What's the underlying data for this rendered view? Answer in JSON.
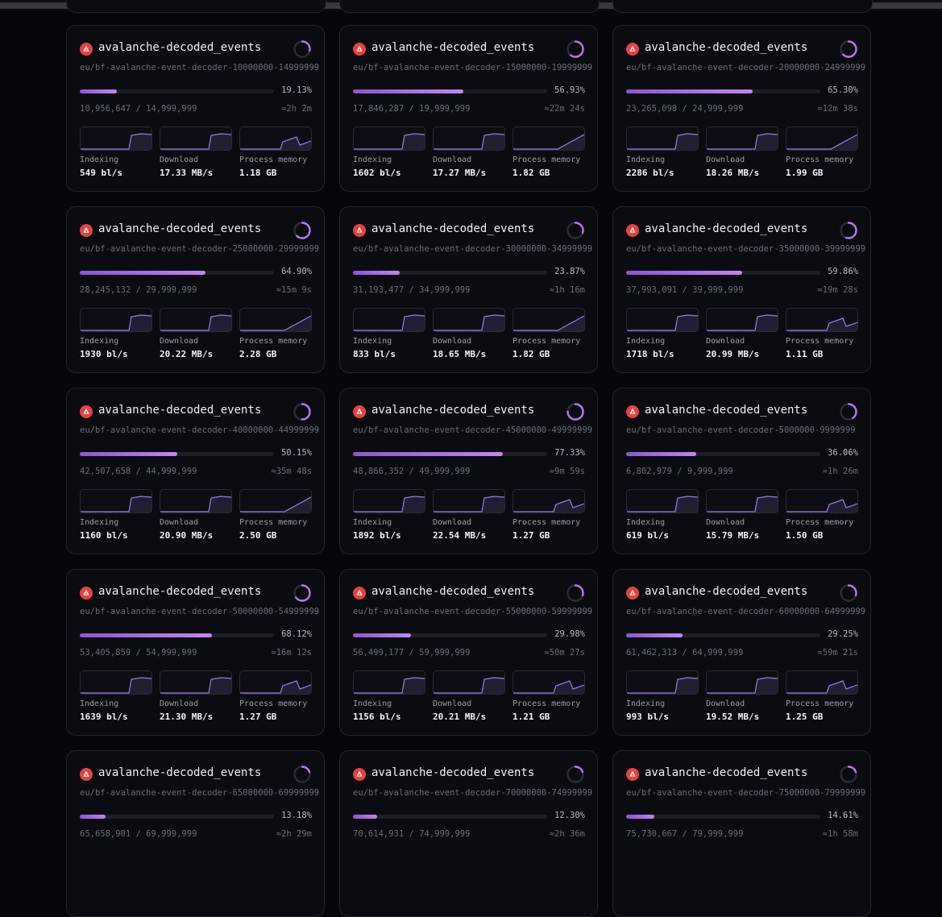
{
  "colors": {
    "background": "#06070d",
    "card": "#0b0c12",
    "accent": "#b57ae8",
    "logo": "#e84142"
  },
  "icons": {
    "logo": "avalanche-logo-icon",
    "status": "progress-ring-icon"
  },
  "metric_labels": {
    "indexing": "Indexing",
    "download": "Download",
    "memory": "Process memory"
  },
  "cards": [
    {
      "title": "avalanche-decoded_events",
      "subtitle": "eu/bf-avalanche-event-decoder-10000000-14999999",
      "percent": "19.13%",
      "progress": 0.1913,
      "counts": "10,956,647 / 14,999,999",
      "eta": "≈2h 2m",
      "indexing": "549 bl/s",
      "download": "17.33 MB/s",
      "memory": "1.18 GB",
      "spinner": 0.28,
      "spark": {
        "indexing": "step",
        "download": "step",
        "memory": "spike"
      }
    },
    {
      "title": "avalanche-decoded_events",
      "subtitle": "eu/bf-avalanche-event-decoder-15000000-19999999",
      "percent": "56.93%",
      "progress": 0.5693,
      "counts": "17,846,287 / 19,999,999",
      "eta": "≈22m 24s",
      "indexing": "1602 bl/s",
      "download": "17.27 MB/s",
      "memory": "1.82 GB",
      "spinner": 0.6,
      "spark": {
        "indexing": "step",
        "download": "step",
        "memory": "ramp"
      }
    },
    {
      "title": "avalanche-decoded_events",
      "subtitle": "eu/bf-avalanche-event-decoder-20000000-24999999",
      "percent": "65.30%",
      "progress": 0.653,
      "counts": "23,265,098 / 24,999,999",
      "eta": "≈12m 38s",
      "indexing": "2286 bl/s",
      "download": "18.26 MB/s",
      "memory": "1.99 GB",
      "spinner": 0.62,
      "spark": {
        "indexing": "step",
        "download": "step",
        "memory": "ramp"
      }
    },
    {
      "title": "avalanche-decoded_events",
      "subtitle": "eu/bf-avalanche-event-decoder-25000000-29999999",
      "percent": "64.90%",
      "progress": 0.649,
      "counts": "28,245,132 / 29,999,999",
      "eta": "≈15m 9s",
      "indexing": "1930 bl/s",
      "download": "20.22 MB/s",
      "memory": "2.28 GB",
      "spinner": 0.62,
      "spark": {
        "indexing": "step",
        "download": "step",
        "memory": "ramp"
      }
    },
    {
      "title": "avalanche-decoded_events",
      "subtitle": "eu/bf-avalanche-event-decoder-30000000-34999999",
      "percent": "23.87%",
      "progress": 0.2387,
      "counts": "31,193,477 / 34,999,999",
      "eta": "≈1h 16m",
      "indexing": "833 bl/s",
      "download": "18.65 MB/s",
      "memory": "1.82 GB",
      "spinner": 0.3,
      "spark": {
        "indexing": "step",
        "download": "step",
        "memory": "ramp"
      }
    },
    {
      "title": "avalanche-decoded_events",
      "subtitle": "eu/bf-avalanche-event-decoder-35000000-39999999",
      "percent": "59.86%",
      "progress": 0.5986,
      "counts": "37,993,091 / 39,999,999",
      "eta": "≈19m 28s",
      "indexing": "1718 bl/s",
      "download": "20.99 MB/s",
      "memory": "1.11 GB",
      "spinner": 0.55,
      "spark": {
        "indexing": "step",
        "download": "step",
        "memory": "spike"
      }
    },
    {
      "title": "avalanche-decoded_events",
      "subtitle": "eu/bf-avalanche-event-decoder-40000000-44999999",
      "percent": "50.15%",
      "progress": 0.5015,
      "counts": "42,507,658 / 44,999,999",
      "eta": "≈35m 48s",
      "indexing": "1160 bl/s",
      "download": "20.90 MB/s",
      "memory": "2.50 GB",
      "spinner": 0.5,
      "spark": {
        "indexing": "step",
        "download": "step",
        "memory": "ramp"
      }
    },
    {
      "title": "avalanche-decoded_events",
      "subtitle": "eu/bf-avalanche-event-decoder-45000000-49999999",
      "percent": "77.33%",
      "progress": 0.7733,
      "counts": "48,866,352 / 49,999,999",
      "eta": "≈9m 59s",
      "indexing": "1892 bl/s",
      "download": "22.54 MB/s",
      "memory": "1.27 GB",
      "spinner": 0.75,
      "spark": {
        "indexing": "step",
        "download": "step",
        "memory": "spike"
      }
    },
    {
      "title": "avalanche-decoded_events",
      "subtitle": "eu/bf-avalanche-event-decoder-5000000-9999999",
      "percent": "36.06%",
      "progress": 0.3606,
      "counts": "6,802,979 / 9,999,999",
      "eta": "≈1h 26m",
      "indexing": "619 bl/s",
      "download": "15.79 MB/s",
      "memory": "1.50 GB",
      "spinner": 0.4,
      "spark": {
        "indexing": "step",
        "download": "step",
        "memory": "spike"
      }
    },
    {
      "title": "avalanche-decoded_events",
      "subtitle": "eu/bf-avalanche-event-decoder-50000000-54999999",
      "percent": "68.12%",
      "progress": 0.6812,
      "counts": "53,405,859 / 54,999,999",
      "eta": "≈16m 12s",
      "indexing": "1639 bl/s",
      "download": "21.30 MB/s",
      "memory": "1.27 GB",
      "spinner": 0.65,
      "spark": {
        "indexing": "step",
        "download": "step",
        "memory": "spike"
      }
    },
    {
      "title": "avalanche-decoded_events",
      "subtitle": "eu/bf-avalanche-event-decoder-55000000-59999999",
      "percent": "29.98%",
      "progress": 0.2998,
      "counts": "56,499,177 / 59,999,999",
      "eta": "≈50m 27s",
      "indexing": "1156 bl/s",
      "download": "20.21 MB/s",
      "memory": "1.21 GB",
      "spinner": 0.3,
      "spark": {
        "indexing": "step",
        "download": "step",
        "memory": "spike"
      }
    },
    {
      "title": "avalanche-decoded_events",
      "subtitle": "eu/bf-avalanche-event-decoder-60000000-64999999",
      "percent": "29.25%",
      "progress": 0.2925,
      "counts": "61,462,313 / 64,999,999",
      "eta": "≈59m 21s",
      "indexing": "993 bl/s",
      "download": "19.52 MB/s",
      "memory": "1.25 GB",
      "spinner": 0.3,
      "spark": {
        "indexing": "step",
        "download": "step",
        "memory": "spike"
      }
    },
    {
      "title": "avalanche-decoded_events",
      "subtitle": "eu/bf-avalanche-event-decoder-65000000-69999999",
      "percent": "13.18%",
      "progress": 0.1318,
      "counts": "65,658,901 / 69,999,999",
      "eta": "≈2h 29m",
      "indexing": "",
      "download": "",
      "memory": "",
      "spinner": 0.2,
      "spark": {
        "indexing": "",
        "download": "",
        "memory": ""
      }
    },
    {
      "title": "avalanche-decoded_events",
      "subtitle": "eu/bf-avalanche-event-decoder-70000000-74999999",
      "percent": "12.30%",
      "progress": 0.123,
      "counts": "70,614,931 / 74,999,999",
      "eta": "≈2h 36m",
      "indexing": "",
      "download": "",
      "memory": "",
      "spinner": 0.2,
      "spark": {
        "indexing": "",
        "download": "",
        "memory": ""
      }
    },
    {
      "title": "avalanche-decoded_events",
      "subtitle": "eu/bf-avalanche-event-decoder-75000000-79999999",
      "percent": "14.61%",
      "progress": 0.1461,
      "counts": "75,730,667 / 79,999,999",
      "eta": "≈1h 58m",
      "indexing": "",
      "download": "",
      "memory": "",
      "spinner": 0.2,
      "spark": {
        "indexing": "",
        "download": "",
        "memory": ""
      }
    }
  ]
}
